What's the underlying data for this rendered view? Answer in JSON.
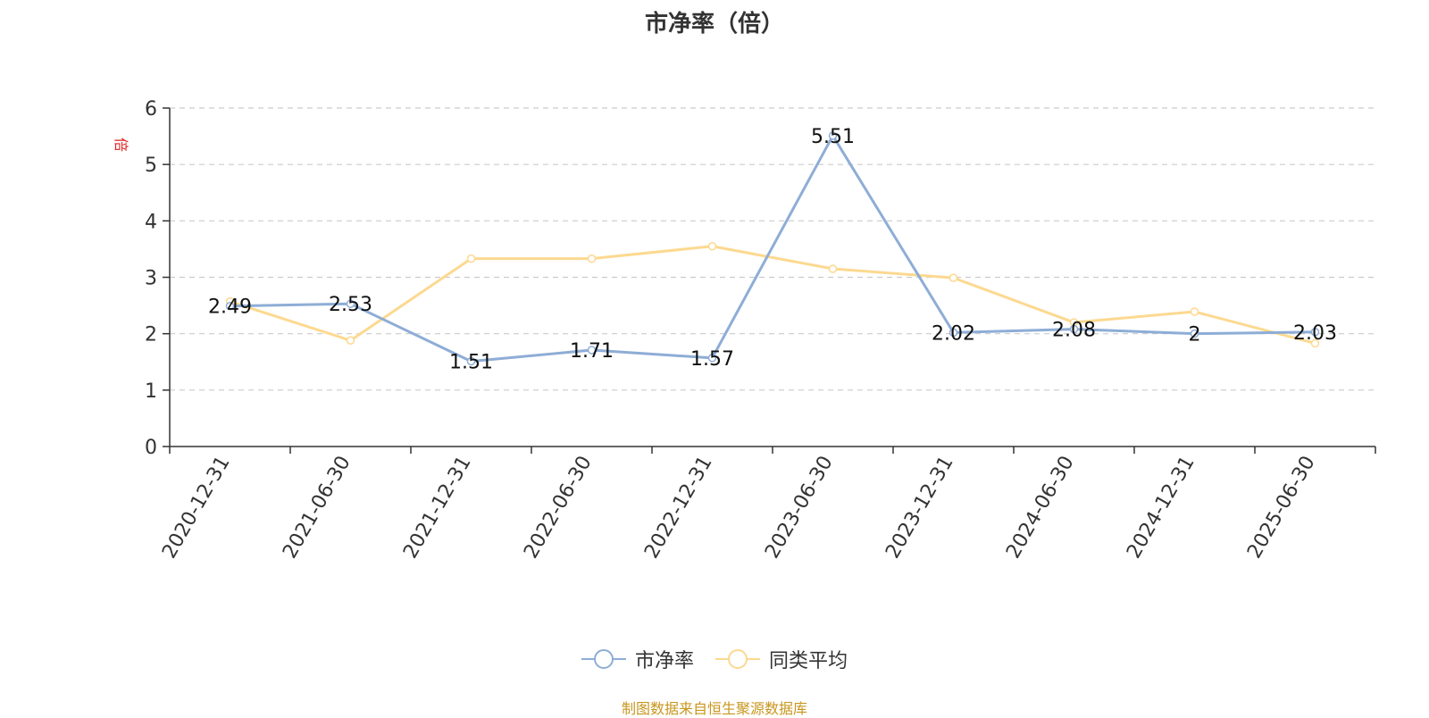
{
  "chart_data": {
    "type": "line",
    "title": "市净率（倍）",
    "ylabel": "倍",
    "xlabel": "",
    "ylim": [
      0,
      6
    ],
    "yticks": [
      0,
      1,
      2,
      3,
      4,
      5,
      6
    ],
    "grid": true,
    "legend_position": "bottom",
    "categories": [
      "2020-12-31",
      "2021-06-30",
      "2021-12-31",
      "2022-06-30",
      "2022-12-31",
      "2023-06-30",
      "2023-12-31",
      "2024-06-30",
      "2024-12-31",
      "2025-06-30"
    ],
    "series": [
      {
        "name": "市净率",
        "color": "#8eadd6",
        "values": [
          2.49,
          2.53,
          1.51,
          1.71,
          1.57,
          5.51,
          2.02,
          2.08,
          2,
          2.03
        ],
        "labels": [
          "2.49",
          "2.53",
          "1.51",
          "1.71",
          "1.57",
          "5.51",
          "2.02",
          "2.08",
          "2",
          "2.03"
        ]
      },
      {
        "name": "同类平均",
        "color": "#fcd990",
        "values": [
          2.57,
          1.88,
          3.33,
          3.33,
          3.55,
          3.15,
          2.99,
          2.2,
          2.39,
          1.83
        ]
      }
    ]
  },
  "source": "制图数据来自恒生聚源数据库"
}
